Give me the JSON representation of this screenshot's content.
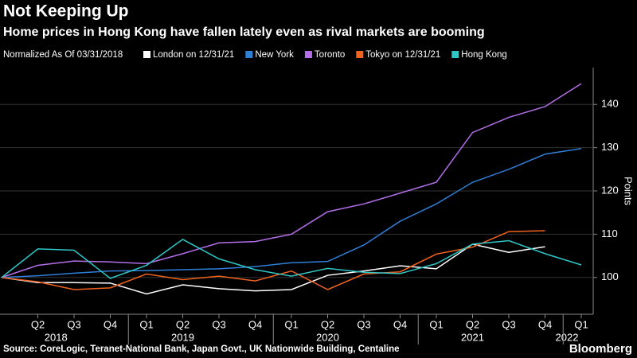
{
  "chart_data": {
    "type": "line",
    "title": "Not Keeping Up",
    "subtitle": "Home prices in Hong Kong have fallen lately even as rival markets are booming",
    "legend_title": "Normalized As Of 03/31/2018",
    "y_label": "Points",
    "source": "Source: CoreLogic, Teranet-National Bank, Japan Govt., UK Nationwide Building, Centaline",
    "logo": "Bloomberg",
    "categories": [
      null,
      "Q2",
      "Q3",
      "Q4",
      "Q1",
      "Q2",
      "Q3",
      "Q4",
      "Q1",
      "Q2",
      "Q3",
      "Q4",
      "Q1",
      "Q2",
      "Q3",
      "Q4",
      "Q1"
    ],
    "years": [
      "2018",
      "2019",
      "2020",
      "2021",
      "2022"
    ],
    "series": [
      {
        "name": "London on 12/31/21",
        "color": "#ffffff",
        "values": [
          100,
          98.8,
          98.8,
          98.7,
          96.2,
          98.3,
          97.4,
          96.9,
          97.2,
          100.5,
          101.5,
          102.7,
          102,
          107.7,
          105.8,
          107.1,
          null
        ]
      },
      {
        "name": "New York",
        "color": "#2f7fd8",
        "values": [
          100,
          100.4,
          101,
          101.5,
          101.6,
          101.8,
          102,
          102.5,
          103.4,
          103.7,
          107.5,
          113,
          117,
          122,
          125,
          128.5,
          129.8
        ]
      },
      {
        "name": "Toronto",
        "color": "#b36ee8",
        "values": [
          100,
          102.8,
          103.8,
          103.6,
          103.2,
          105.5,
          108,
          108.3,
          110,
          115.2,
          117,
          119.5,
          122,
          133.5,
          137,
          139.5,
          144.8
        ]
      },
      {
        "name": "Tokyo on 12/31/21",
        "color": "#f0621e",
        "values": [
          100,
          99,
          97.2,
          97.6,
          100.8,
          99.5,
          100.3,
          99.2,
          101.5,
          97.2,
          100.8,
          101.3,
          105.4,
          107,
          110.6,
          110.8,
          null
        ]
      },
      {
        "name": "Hong Kong",
        "color": "#2fc6c6",
        "values": [
          100,
          106.6,
          106.3,
          99.8,
          102.8,
          108.8,
          104.3,
          101.8,
          100.3,
          102.1,
          101.2,
          100.9,
          103.2,
          107.7,
          108.5,
          105.5,
          102.9
        ]
      }
    ],
    "ylim": [
      91.5,
      148.5
    ],
    "yticks": [
      100,
      110,
      120,
      130,
      140
    ],
    "grid": true
  }
}
